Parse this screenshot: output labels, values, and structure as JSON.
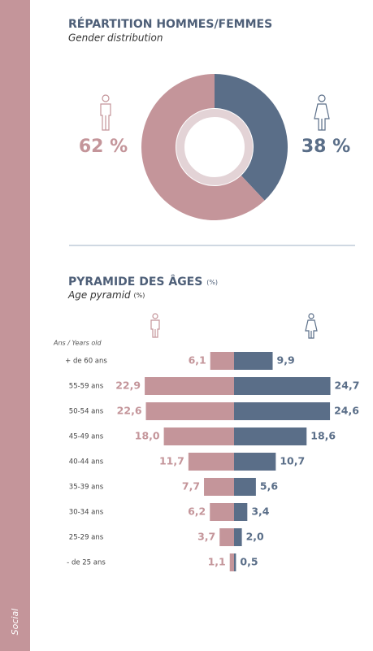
{
  "sidebar": "Social",
  "chart_data": [
    {
      "type": "pie",
      "title": "RÉPARTITION HOMMES/FEMMES",
      "subtitle": "Gender distribution",
      "values": [
        62,
        38
      ],
      "value_labels": [
        "62 %",
        "38 %"
      ],
      "colors": [
        "#c4959a",
        "#5a6e88"
      ]
    },
    {
      "type": "pyramid",
      "title": "PYRAMIDE DES ÂGES",
      "title_unit": "(%)",
      "subtitle": "Age pyramid",
      "subtitle_unit": "(%)",
      "axis_label": "Ans / Years old",
      "categories": [
        "+ de 60 ans",
        "55-59 ans",
        "50-54 ans",
        "45-49 ans",
        "40-44 ans",
        "35-39 ans",
        "30-34 ans",
        "25-29 ans",
        "- de 25 ans"
      ],
      "series": [
        {
          "color": "#c4959a",
          "values": [
            6.1,
            22.9,
            22.6,
            18.0,
            11.7,
            7.7,
            6.2,
            3.7,
            1.1
          ],
          "value_labels": [
            "6,1",
            "22,9",
            "22,6",
            "18,0",
            "11,7",
            "7,7",
            "6,2",
            "3,7",
            "1,1"
          ]
        },
        {
          "color": "#5a6e88",
          "values": [
            9.9,
            24.7,
            24.6,
            18.6,
            10.7,
            5.6,
            3.4,
            2.0,
            0.5
          ],
          "value_labels": [
            "9,9",
            "24,7",
            "24,6",
            "18,6",
            "10,7",
            "5,6",
            "3,4",
            "2,0",
            "0,5"
          ]
        }
      ]
    }
  ]
}
